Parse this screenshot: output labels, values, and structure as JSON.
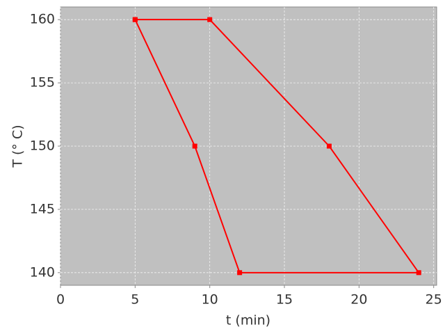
{
  "chart_data": {
    "type": "line",
    "x_label": "t (min)",
    "y_label": "T (° C)",
    "x": [
      5,
      10,
      18,
      24,
      12,
      9,
      5
    ],
    "series": [
      {
        "name": "T",
        "color": "#ff0000",
        "values": [
          160,
          160,
          150,
          140,
          140,
          150,
          160
        ]
      }
    ],
    "xlim": [
      0,
      25.2
    ],
    "xticks": [
      0,
      5,
      10,
      15,
      20,
      25
    ],
    "ylim": [
      139,
      161
    ],
    "yticks": [
      140,
      145,
      150,
      155,
      160
    ],
    "grid": true,
    "background": "#c0c0c0",
    "markers": "square"
  }
}
